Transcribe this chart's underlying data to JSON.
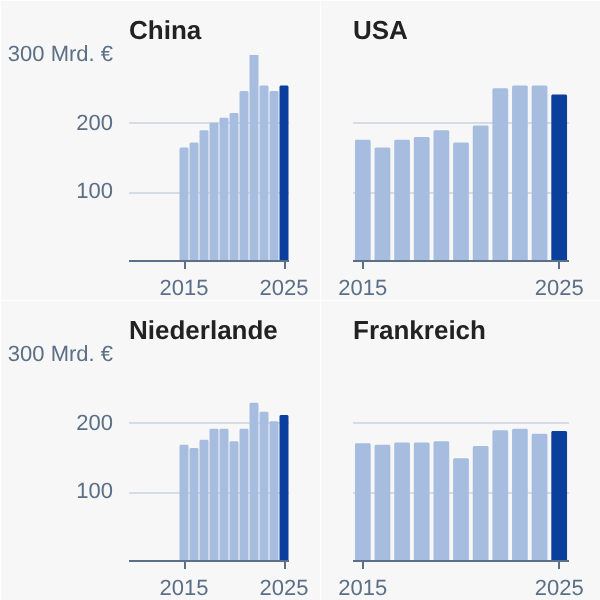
{
  "chart_data": [
    {
      "type": "bar",
      "title": "China",
      "x": [
        2015,
        2016,
        2017,
        2018,
        2019,
        2020,
        2021,
        2022,
        2023,
        2024,
        2025
      ],
      "values": [
        164,
        171,
        189,
        200,
        207,
        214,
        246,
        300,
        254,
        246,
        254
      ],
      "colors": [
        "#a7bde0",
        "#a7bde0",
        "#a7bde0",
        "#a7bde0",
        "#a7bde0",
        "#a7bde0",
        "#a7bde0",
        "#a7bde0",
        "#a7bde0",
        "#a7bde0",
        "#0b3f9c"
      ],
      "xlim": [
        2009.5,
        2025.5
      ],
      "ylim": [
        0,
        300
      ],
      "xticks": [
        2015,
        2025
      ],
      "yticks": [
        100,
        200,
        {
          "value": 300,
          "label": "300 Mrd. €"
        }
      ],
      "grid": "y"
    },
    {
      "type": "bar",
      "title": "USA",
      "x": [
        2015,
        2016,
        2017,
        2018,
        2019,
        2020,
        2021,
        2022,
        2023,
        2024,
        2025
      ],
      "values": [
        175,
        164,
        175,
        179,
        189,
        171,
        196,
        250,
        254,
        254,
        241
      ],
      "colors": [
        "#a7bde0",
        "#a7bde0",
        "#a7bde0",
        "#a7bde0",
        "#a7bde0",
        "#a7bde0",
        "#a7bde0",
        "#a7bde0",
        "#a7bde0",
        "#a7bde0",
        "#0b3f9c"
      ],
      "xlim": [
        2014.5,
        2025.5
      ],
      "ylim": [
        0,
        300
      ],
      "xticks": [
        2015,
        2025
      ],
      "yticks": [
        100,
        200,
        300
      ],
      "grid": "y",
      "tick_labels": "x"
    },
    {
      "type": "bar",
      "title": "Niederlande",
      "x": [
        2015,
        2016,
        2017,
        2018,
        2019,
        2020,
        2021,
        2022,
        2023,
        2024,
        2025
      ],
      "values": [
        168,
        163,
        175,
        191,
        191,
        173,
        191,
        229,
        216,
        202,
        211
      ],
      "colors": [
        "#a7bde0",
        "#a7bde0",
        "#a7bde0",
        "#a7bde0",
        "#a7bde0",
        "#a7bde0",
        "#a7bde0",
        "#a7bde0",
        "#a7bde0",
        "#a7bde0",
        "#0b3f9c"
      ],
      "xlim": [
        2009.5,
        2025.5
      ],
      "ylim": [
        0,
        300
      ],
      "xticks": [
        2015,
        2025
      ],
      "yticks": [
        100,
        200,
        {
          "value": 300,
          "label": "300 Mrd. €"
        }
      ],
      "grid": "y"
    },
    {
      "type": "bar",
      "title": "Frankreich",
      "x": [
        2015,
        2016,
        2017,
        2018,
        2019,
        2020,
        2021,
        2022,
        2023,
        2024,
        2025
      ],
      "values": [
        170,
        168,
        171,
        171,
        173,
        148,
        166,
        189,
        191,
        184,
        188
      ],
      "colors": [
        "#a7bde0",
        "#a7bde0",
        "#a7bde0",
        "#a7bde0",
        "#a7bde0",
        "#a7bde0",
        "#a7bde0",
        "#a7bde0",
        "#a7bde0",
        "#a7bde0",
        "#0b3f9c"
      ],
      "xlim": [
        2014.5,
        2025.5
      ],
      "ylim": [
        0,
        300
      ],
      "xticks": [
        2015,
        2025
      ],
      "yticks": [
        100,
        200,
        300
      ],
      "grid": "y",
      "tick_labels": "x"
    }
  ]
}
